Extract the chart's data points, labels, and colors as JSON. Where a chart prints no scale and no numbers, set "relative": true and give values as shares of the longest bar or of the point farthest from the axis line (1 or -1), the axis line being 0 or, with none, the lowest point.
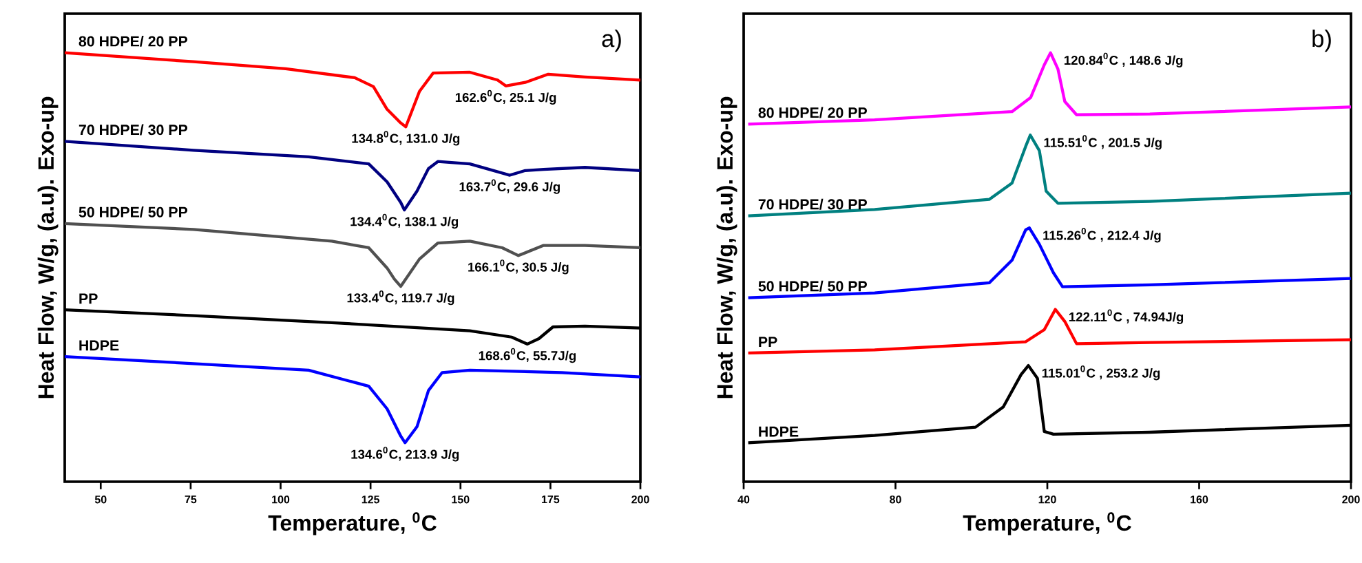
{
  "chart_data": [
    {
      "type": "line",
      "title": "a)",
      "xlabel": "Temperature, $^{0}$C",
      "ylabel": "Heat Flow, W/g, (a.u). Exo-up",
      "relative": true,
      "xlim": [
        40,
        200
      ],
      "xticks": [
        50,
        75,
        100,
        125,
        150,
        175,
        200
      ],
      "series": [
        {
          "name": "80 HDPE/ 20 PP",
          "color": "#ff0000",
          "x": [
            40,
            75.8,
            101.4,
            120.6,
            125.8,
            129.6,
            133.4,
            134.8,
            138.6,
            142.4,
            152.6,
            160.3,
            162.6,
            168,
            174.4,
            184.6,
            200
          ],
          "values": [
            1.0,
            0.977,
            0.959,
            0.936,
            0.913,
            0.855,
            0.82,
            0.81,
            0.901,
            0.948,
            0.95,
            0.93,
            0.915,
            0.924,
            0.945,
            0.938,
            0.93
          ]
        },
        {
          "name": "70 HDPE/ 30 PP",
          "color": "#000080",
          "x": [
            40,
            75.8,
            107.8,
            124.5,
            129.6,
            133.4,
            134.4,
            137.9,
            141.1,
            143.7,
            152.6,
            163.7,
            168,
            173.1,
            184.6,
            200
          ],
          "values": [
            0.773,
            0.75,
            0.733,
            0.715,
            0.669,
            0.616,
            0.597,
            0.645,
            0.703,
            0.721,
            0.715,
            0.686,
            0.698,
            0.701,
            0.706,
            0.698
          ]
        },
        {
          "name": "50 HDPE/ 50 PP",
          "color": "#505050",
          "x": [
            40,
            75.8,
            114.2,
            124.5,
            129.6,
            131.6,
            133.4,
            138.6,
            143.7,
            152.6,
            161.6,
            166.1,
            173.1,
            184.6,
            200
          ],
          "values": [
            0.562,
            0.547,
            0.517,
            0.5,
            0.448,
            0.42,
            0.401,
            0.471,
            0.512,
            0.517,
            0.5,
            0.48,
            0.506,
            0.506,
            0.5
          ]
        },
        {
          "name": "PP",
          "color": "#000000",
          "x": [
            40,
            75.8,
            114.2,
            152.6,
            164.2,
            168.6,
            171.8,
            175.7,
            184.6,
            200
          ],
          "values": [
            0.341,
            0.326,
            0.308,
            0.287,
            0.271,
            0.253,
            0.267,
            0.297,
            0.299,
            0.294
          ]
        },
        {
          "name": "HDPE",
          "color": "#0000ff",
          "x": [
            40,
            75.8,
            107.8,
            124.5,
            129.6,
            133.4,
            134.6,
            137.9,
            141.1,
            144.9,
            152.6,
            178.2,
            200
          ],
          "values": [
            0.221,
            0.203,
            0.186,
            0.145,
            0.087,
            0.017,
            0,
            0.041,
            0.134,
            0.18,
            0.186,
            0.18,
            0.169
          ]
        }
      ],
      "annotations": [
        {
          "text": "162.6$^{0}$C, 25.1 J/g",
          "x": 162.6,
          "y": 0.915
        },
        {
          "text": "134.8$^{0}$C, 131.0 J/g",
          "x": 134.8,
          "y": 0.81
        },
        {
          "text": "163.7$^{0}$C, 29.6 J/g",
          "x": 163.7,
          "y": 0.686
        },
        {
          "text": "134.4$^{0}$C, 138.1 J/g",
          "x": 134.4,
          "y": 0.597
        },
        {
          "text": "166.1$^{0}$C, 30.5 J/g",
          "x": 166.1,
          "y": 0.48
        },
        {
          "text": "133.4$^{0}$C, 119.7 J/g",
          "x": 133.4,
          "y": 0.401
        },
        {
          "text": "168.6$^{0}$C, 55.7J/g",
          "x": 168.6,
          "y": 0.253
        },
        {
          "text": "134.6$^{0}$C, 213.9 J/g",
          "x": 134.6,
          "y": 0
        }
      ]
    },
    {
      "type": "line",
      "title": "b)",
      "xlabel": "Temperature, $^{0}$C",
      "ylabel": "Heat Flow, W/g, (a.u). Exo-up",
      "relative": true,
      "xlim": [
        40,
        200
      ],
      "xticks": [
        40,
        80,
        120,
        160,
        200
      ],
      "series": [
        {
          "name": "80 HDPE/ 20 PP",
          "color": "#ff00ff",
          "x": [
            41.2,
            74.5,
            110.7,
            115.6,
            119.2,
            120.84,
            122.8,
            124.6,
            127.7,
            147,
            200
          ],
          "values": [
            0.817,
            0.828,
            0.849,
            0.885,
            0.969,
            1,
            0.958,
            0.875,
            0.841,
            0.843,
            0.861
          ]
        },
        {
          "name": "70 HDPE/ 30 PP",
          "color": "#008080",
          "x": [
            41.2,
            74.5,
            104.7,
            110.7,
            114.3,
            115.51,
            117.9,
            119.7,
            122.8,
            147,
            200
          ],
          "values": [
            0.582,
            0.598,
            0.624,
            0.666,
            0.76,
            0.789,
            0.749,
            0.645,
            0.614,
            0.619,
            0.64
          ]
        },
        {
          "name": "50 HDPE/ 50 PP",
          "color": "#0000ff",
          "x": [
            41.2,
            74.5,
            104.7,
            110.7,
            114.3,
            115.26,
            117.9,
            121.6,
            124,
            147,
            200
          ],
          "values": [
            0.372,
            0.384,
            0.41,
            0.468,
            0.546,
            0.551,
            0.509,
            0.436,
            0.4,
            0.405,
            0.421
          ]
        },
        {
          "name": "PP",
          "color": "#ff0000",
          "x": [
            41.2,
            74.5,
            114.3,
            119.2,
            122.11,
            124.6,
            127.7,
            147,
            200
          ],
          "values": [
            0.23,
            0.238,
            0.259,
            0.29,
            0.342,
            0.311,
            0.254,
            0.257,
            0.264
          ]
        },
        {
          "name": "HDPE",
          "color": "#000000",
          "x": [
            41.2,
            74.5,
            101.1,
            108.4,
            113.1,
            115.01,
            117.4,
            119.2,
            121.6,
            147,
            200
          ],
          "values": [
            0,
            0.019,
            0.04,
            0.092,
            0.175,
            0.198,
            0.165,
            0.029,
            0.022,
            0.027,
            0.045
          ]
        }
      ],
      "annotations": [
        {
          "text": "120.84$^{0}$C , 148.6 J/g",
          "x": 120.84,
          "y": 1
        },
        {
          "text": "115.51$^{0}$C , 201.5 J/g",
          "x": 115.51,
          "y": 0.789
        },
        {
          "text": "115.26$^{0}$C , 212.4 J/g",
          "x": 115.26,
          "y": 0.551
        },
        {
          "text": "122.11$^{0}$C , 74.94J/g",
          "x": 122.11,
          "y": 0.342
        },
        {
          "text": "115.01$^{0}$C , 253.2 J/g",
          "x": 115.01,
          "y": 0.198
        }
      ]
    }
  ]
}
